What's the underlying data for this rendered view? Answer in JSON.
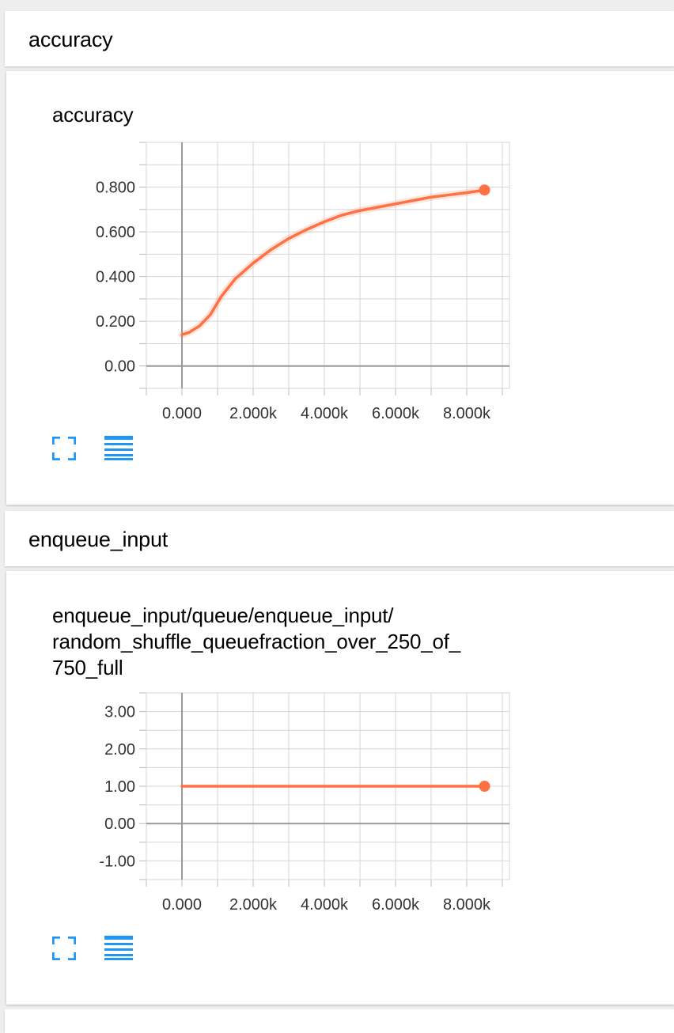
{
  "sections": [
    {
      "header": "accuracy",
      "chart_title": "accuracy",
      "chart_data": {
        "type": "line",
        "title": "accuracy",
        "xlim": [
          -1000,
          9200
        ],
        "ylim": [
          -0.1,
          1.0
        ],
        "x_ticks": [
          0,
          2000,
          4000,
          6000,
          8000
        ],
        "x_tick_labels": [
          "0.000",
          "2.000k",
          "4.000k",
          "6.000k",
          "8.000k"
        ],
        "y_ticks": [
          0,
          0.2,
          0.4,
          0.6,
          0.8
        ],
        "y_tick_labels": [
          "0.00",
          "0.200",
          "0.400",
          "0.600",
          "0.800"
        ],
        "grid": true,
        "color": "#ff7043",
        "series": [
          {
            "x": [
              0,
              200,
              500,
              800,
              1100,
              1500,
              2000,
              2500,
              3000,
              3500,
              4000,
              4500,
              5000,
              5500,
              6000,
              6500,
              7000,
              7500,
              8000,
              8500
            ],
            "y": [
              0.14,
              0.15,
              0.18,
              0.23,
              0.31,
              0.39,
              0.46,
              0.52,
              0.57,
              0.61,
              0.645,
              0.675,
              0.695,
              0.71,
              0.725,
              0.74,
              0.755,
              0.765,
              0.775,
              0.787
            ]
          }
        ]
      }
    },
    {
      "header": "enqueue_input",
      "chart_title": "enqueue_input/queue/enqueue_input/\nrandom_shuffle_queuefraction_over_250_of_\n750_full",
      "chart_data": {
        "type": "line",
        "title": "enqueue_input/queue/enqueue_input/random_shuffle_queuefraction_over_250_of_750_full",
        "xlim": [
          -1000,
          9200
        ],
        "ylim": [
          -1.5,
          3.5
        ],
        "x_ticks": [
          0,
          2000,
          4000,
          6000,
          8000
        ],
        "x_tick_labels": [
          "0.000",
          "2.000k",
          "4.000k",
          "6.000k",
          "8.000k"
        ],
        "y_ticks": [
          -1,
          0,
          1,
          2,
          3
        ],
        "y_tick_labels": [
          "-1.00",
          "0.00",
          "1.00",
          "2.00",
          "3.00"
        ],
        "grid": true,
        "color": "#ff7043",
        "series": [
          {
            "x": [
              0,
              8500
            ],
            "y": [
              1.0,
              1.0
            ]
          }
        ]
      }
    }
  ],
  "icons": {
    "expand": "fullscreen-icon",
    "data_table": "list-icon",
    "color": "#2196f3"
  }
}
